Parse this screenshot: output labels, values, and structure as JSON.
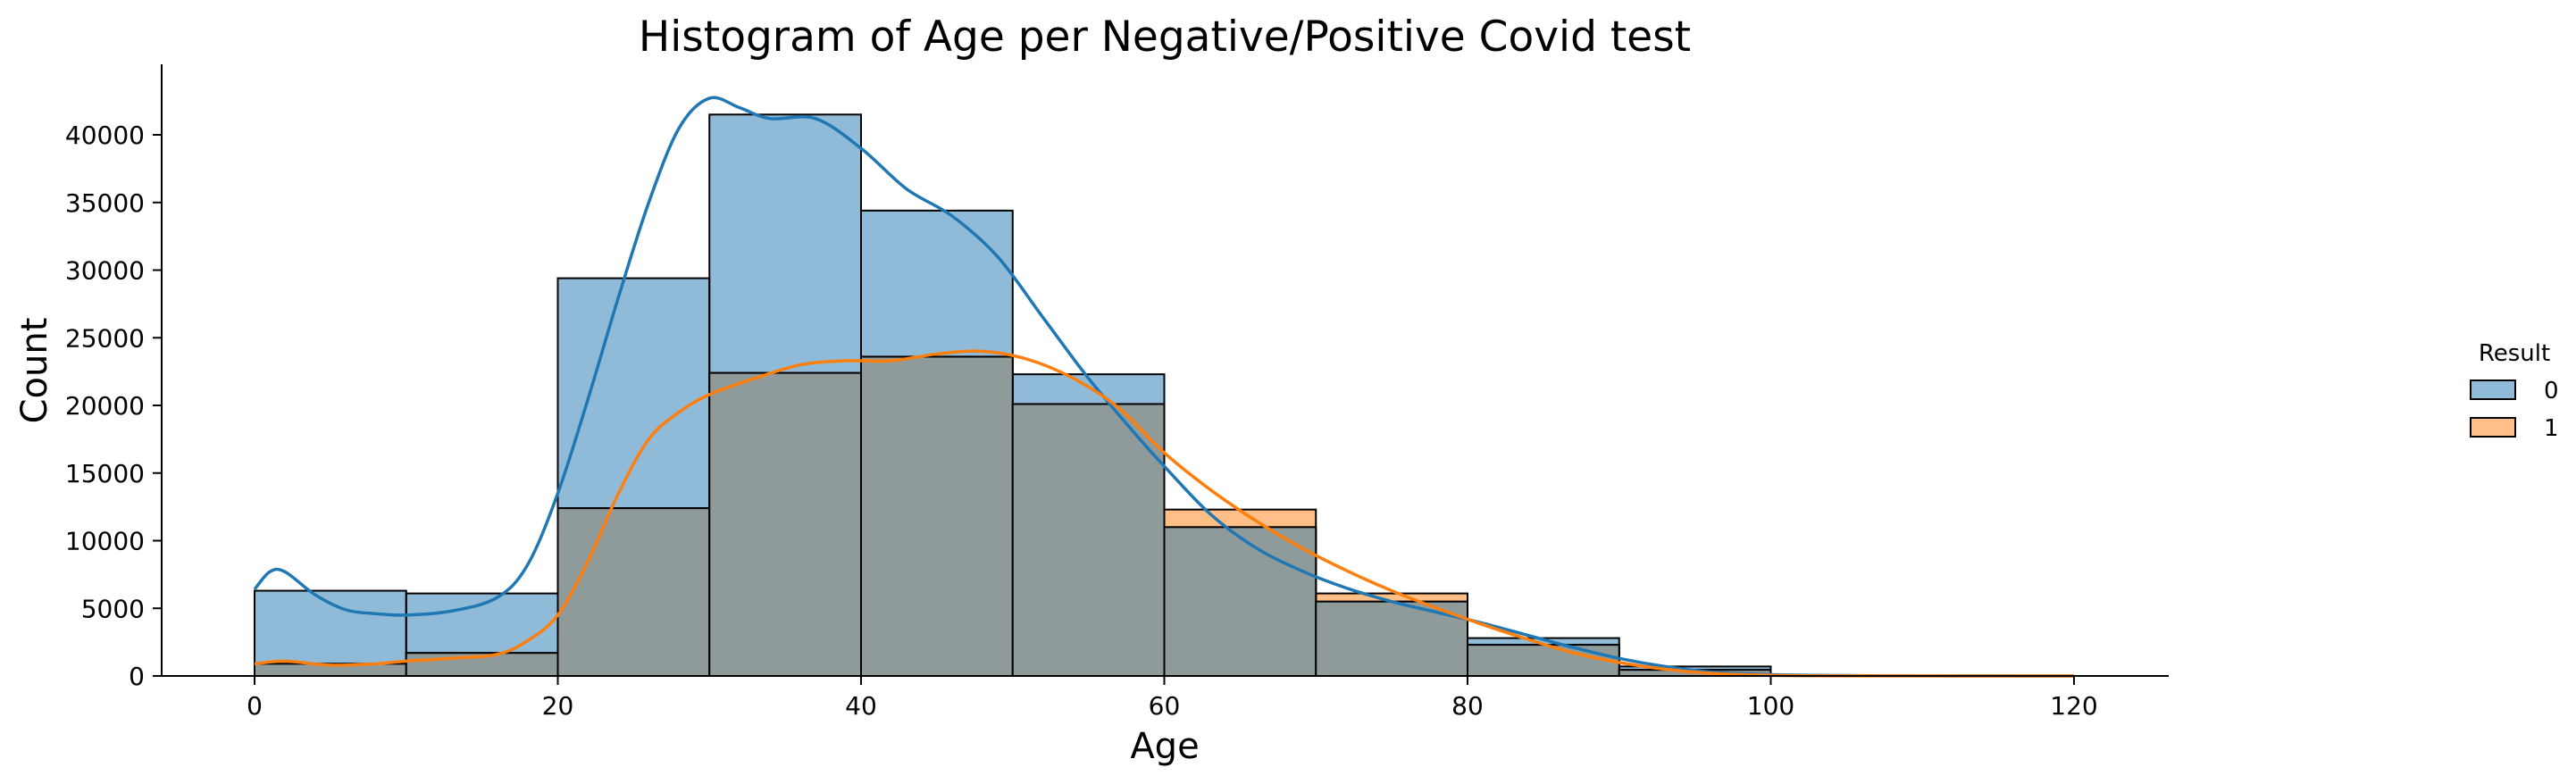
{
  "chart_data": {
    "type": "histogram",
    "title": "Histogram of Age per Negative/Positive Covid test",
    "xlabel": "Age",
    "ylabel": "Count",
    "xlim": [
      -6,
      126
    ],
    "ylim": [
      0,
      45500
    ],
    "xticks": [
      0,
      20,
      40,
      60,
      80,
      100,
      120
    ],
    "yticks": [
      0,
      5000,
      10000,
      15000,
      20000,
      25000,
      30000,
      35000,
      40000
    ],
    "bin_edges": [
      0,
      10,
      20,
      30,
      40,
      50,
      60,
      70,
      80,
      90,
      100
    ],
    "legend": {
      "title": "Result",
      "placement": "right"
    },
    "series": [
      {
        "name": "0",
        "color": "#1f77b4",
        "counts": [
          6300,
          6100,
          29400,
          41500,
          34400,
          22300,
          11000,
          5500,
          2800,
          700
        ],
        "kde": [
          [
            0,
            6400
          ],
          [
            1,
            7700
          ],
          [
            2,
            7700
          ],
          [
            4,
            6000
          ],
          [
            6,
            4900
          ],
          [
            8,
            4600
          ],
          [
            10,
            4500
          ],
          [
            13,
            4800
          ],
          [
            16,
            5800
          ],
          [
            18,
            8200
          ],
          [
            20,
            13500
          ],
          [
            22,
            20500
          ],
          [
            24,
            28000
          ],
          [
            26,
            35000
          ],
          [
            28,
            40500
          ],
          [
            30,
            42700
          ],
          [
            32,
            42000
          ],
          [
            34,
            41200
          ],
          [
            37,
            41200
          ],
          [
            40,
            39000
          ],
          [
            43,
            36000
          ],
          [
            46,
            34000
          ],
          [
            49,
            31000
          ],
          [
            52,
            26500
          ],
          [
            55,
            22000
          ],
          [
            58,
            18000
          ],
          [
            60,
            15500
          ],
          [
            63,
            12000
          ],
          [
            66,
            9500
          ],
          [
            69,
            7800
          ],
          [
            72,
            6500
          ],
          [
            75,
            5500
          ],
          [
            78,
            4700
          ],
          [
            81,
            3900
          ],
          [
            84,
            3000
          ],
          [
            87,
            2100
          ],
          [
            90,
            1300
          ],
          [
            93,
            700
          ],
          [
            96,
            300
          ],
          [
            100,
            100
          ],
          [
            105,
            30
          ],
          [
            110,
            10
          ],
          [
            120,
            0
          ]
        ]
      },
      {
        "name": "1",
        "color": "#ff7f0e",
        "counts": [
          900,
          1700,
          12400,
          22400,
          23600,
          20100,
          12300,
          6100,
          2300,
          450
        ],
        "kde": [
          [
            0,
            900
          ],
          [
            2,
            1100
          ],
          [
            5,
            800
          ],
          [
            8,
            900
          ],
          [
            10,
            1100
          ],
          [
            13,
            1300
          ],
          [
            16,
            1600
          ],
          [
            18,
            2600
          ],
          [
            20,
            4500
          ],
          [
            22,
            8500
          ],
          [
            24,
            13500
          ],
          [
            26,
            17500
          ],
          [
            28,
            19500
          ],
          [
            30,
            20800
          ],
          [
            33,
            22000
          ],
          [
            36,
            23000
          ],
          [
            39,
            23300
          ],
          [
            42,
            23300
          ],
          [
            45,
            23800
          ],
          [
            48,
            24000
          ],
          [
            51,
            23400
          ],
          [
            54,
            22000
          ],
          [
            57,
            19800
          ],
          [
            60,
            16500
          ],
          [
            63,
            13800
          ],
          [
            66,
            11500
          ],
          [
            69,
            9500
          ],
          [
            72,
            7800
          ],
          [
            75,
            6300
          ],
          [
            78,
            5000
          ],
          [
            81,
            3800
          ],
          [
            84,
            2700
          ],
          [
            87,
            1700
          ],
          [
            90,
            1000
          ],
          [
            93,
            500
          ],
          [
            96,
            200
          ],
          [
            100,
            50
          ],
          [
            105,
            10
          ],
          [
            120,
            0
          ]
        ]
      }
    ],
    "overlap_color": "#8f9b9b"
  }
}
